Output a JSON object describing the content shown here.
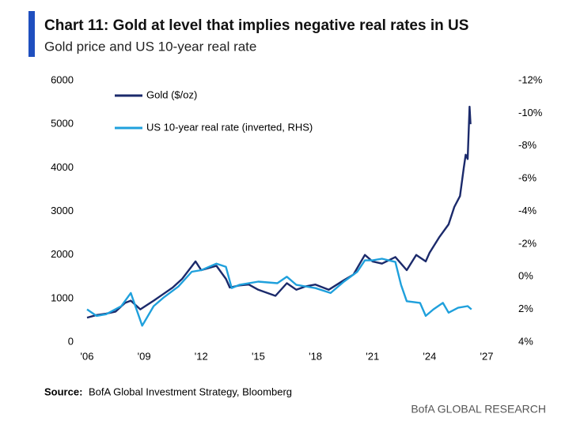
{
  "chart_data": {
    "type": "line",
    "title": "Chart 11: Gold at level that implies negative real rates in US",
    "subtitle": "Gold price and US 10-year real rate",
    "source_label": "Source:",
    "source": "BofA Global Investment Strategy, Bloomberg",
    "brand": "BofA GLOBAL RESEARCH",
    "xlim": [
      2006,
      2027
    ],
    "xticks": [
      {
        "value": 2006,
        "label": "'06"
      },
      {
        "value": 2009,
        "label": "'09"
      },
      {
        "value": 2012,
        "label": "'12"
      },
      {
        "value": 2015,
        "label": "'15"
      },
      {
        "value": 2018,
        "label": "'18"
      },
      {
        "value": 2021,
        "label": "'21"
      },
      {
        "value": 2024,
        "label": "'24"
      },
      {
        "value": 2027,
        "label": "'27"
      }
    ],
    "ylim": [
      0,
      6000
    ],
    "yticks": [
      0,
      1000,
      2000,
      3000,
      4000,
      5000,
      6000
    ],
    "y2lim": [
      4,
      -12
    ],
    "y2ticks": [
      {
        "value": -12,
        "label": "-12%"
      },
      {
        "value": -10,
        "label": "-10%"
      },
      {
        "value": -8,
        "label": "-8%"
      },
      {
        "value": -6,
        "label": "-6%"
      },
      {
        "value": -4,
        "label": "-4%"
      },
      {
        "value": -2,
        "label": "-2%"
      },
      {
        "value": 0,
        "label": "0%"
      },
      {
        "value": 2,
        "label": "2%"
      },
      {
        "value": 4,
        "label": "4%"
      }
    ],
    "legend": "upper-left",
    "series": [
      {
        "name": "Gold ($/oz)",
        "color": "#1b2a6b",
        "x": [
          2006,
          2006.5,
          2007,
          2007.5,
          2008,
          2008.3,
          2008.8,
          2009.5,
          2010,
          2010.5,
          2011,
          2011.7,
          2012,
          2012.8,
          2013.3,
          2013.5,
          2014,
          2014.5,
          2015,
          2015.9,
          2016.5,
          2017,
          2017.5,
          2018,
          2018.7,
          2019.5,
          2020,
          2020.6,
          2021,
          2021.5,
          2022.2,
          2022.8,
          2023.3,
          2023.8,
          2024,
          2024.5,
          2025,
          2025.3,
          2025.6,
          2025.8,
          2025.9,
          2026.0,
          2026.1,
          2026.15
        ],
        "values": [
          560,
          620,
          650,
          700,
          900,
          950,
          750,
          950,
          1100,
          1250,
          1450,
          1850,
          1650,
          1750,
          1450,
          1250,
          1300,
          1320,
          1200,
          1060,
          1350,
          1200,
          1280,
          1320,
          1200,
          1420,
          1550,
          2000,
          1850,
          1800,
          1950,
          1650,
          2000,
          1850,
          2050,
          2400,
          2700,
          3100,
          3350,
          4000,
          4300,
          4200,
          5400,
          5000
        ]
      },
      {
        "name": "US 10-year real rate (inverted, RHS)",
        "color": "#1fa0dc",
        "axis": "y2",
        "x": [
          2006,
          2006.5,
          2007,
          2007.8,
          2008.3,
          2008.9,
          2009.5,
          2010,
          2010.8,
          2011.5,
          2012,
          2012.8,
          2013.3,
          2013.6,
          2014,
          2015,
          2016,
          2016.5,
          2017,
          2018,
          2018.8,
          2019.5,
          2020.2,
          2020.6,
          2021,
          2021.5,
          2022.2,
          2022.5,
          2022.8,
          2023.5,
          2023.8,
          2024.2,
          2024.7,
          2025,
          2025.5,
          2026.0,
          2026.2
        ],
        "values": [
          2.0,
          2.4,
          2.3,
          1.8,
          1.0,
          3.0,
          1.8,
          1.3,
          0.6,
          -0.3,
          -0.4,
          -0.8,
          -0.6,
          0.7,
          0.5,
          0.3,
          0.4,
          0.0,
          0.5,
          0.7,
          1.0,
          0.3,
          -0.3,
          -1.0,
          -1.0,
          -1.1,
          -0.9,
          0.5,
          1.5,
          1.6,
          2.4,
          2.0,
          1.6,
          2.2,
          1.9,
          1.8,
          2.0
        ]
      }
    ]
  }
}
